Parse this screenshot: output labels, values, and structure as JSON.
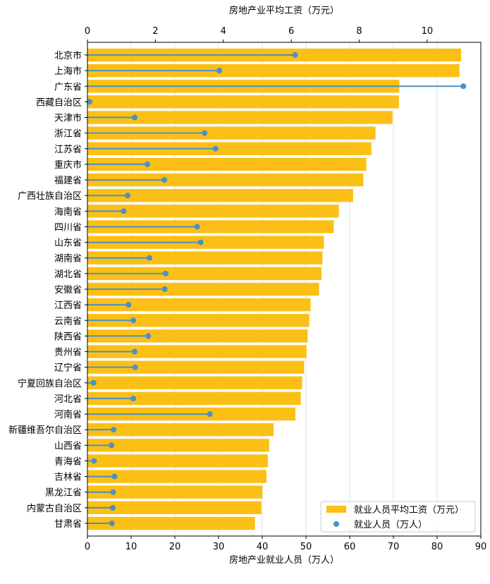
{
  "chart_data": {
    "type": "bar",
    "orientation": "horizontal",
    "categories": [
      "北京市",
      "上海市",
      "广东省",
      "西藏自治区",
      "天津市",
      "浙江省",
      "江苏省",
      "重庆市",
      "福建省",
      "广西壮族自治区",
      "海南省",
      "四川省",
      "山东省",
      "湖南省",
      "湖北省",
      "安徽省",
      "江西省",
      "云南省",
      "陕西省",
      "贵州省",
      "辽宁省",
      "宁夏回族自治区",
      "河北省",
      "河南省",
      "新疆维吾尔自治区",
      "山西省",
      "青海省",
      "吉林省",
      "黑龙江省",
      "内蒙古自治区",
      "甘肃省"
    ],
    "series": [
      {
        "name": "就业人员平均工资（万元）",
        "axis": "top",
        "mark": "bar",
        "color": "#fbbf16",
        "values": [
          11.0,
          10.95,
          9.18,
          9.17,
          8.98,
          8.48,
          8.36,
          8.21,
          8.12,
          7.82,
          7.4,
          7.25,
          6.96,
          6.92,
          6.89,
          6.82,
          6.57,
          6.53,
          6.48,
          6.45,
          6.38,
          6.32,
          6.28,
          6.12,
          5.48,
          5.35,
          5.31,
          5.27,
          5.15,
          5.12,
          4.93
        ]
      },
      {
        "name": "就业人员（万人）",
        "axis": "bottom",
        "mark": "lollipop",
        "color": "#4a90c8",
        "values": [
          47.5,
          30.2,
          86.0,
          0.5,
          10.8,
          26.8,
          29.3,
          13.7,
          17.6,
          9.2,
          8.3,
          25.1,
          25.9,
          14.2,
          17.9,
          17.7,
          9.4,
          10.5,
          13.9,
          10.8,
          10.9,
          1.4,
          10.5,
          28.0,
          6.0,
          5.5,
          1.5,
          6.2,
          5.9,
          5.8,
          5.6
        ]
      }
    ],
    "top_axis": {
      "label": "房地产业平均工资（万元）",
      "ticks": [
        "0",
        "2",
        "4",
        "6",
        "8",
        "10"
      ],
      "tick_values": [
        0,
        2,
        4,
        6,
        8,
        10
      ],
      "range": [
        0,
        11.58
      ]
    },
    "bottom_axis": {
      "label": "房地产业就业人员（万人）",
      "ticks": [
        "0",
        "10",
        "20",
        "30",
        "40",
        "50",
        "60",
        "70",
        "80",
        "90"
      ],
      "tick_values": [
        0,
        10,
        20,
        30,
        40,
        50,
        60,
        70,
        80,
        90
      ],
      "range": [
        0,
        90
      ]
    },
    "grid": "vertical",
    "legend_position": "bottom-right"
  }
}
